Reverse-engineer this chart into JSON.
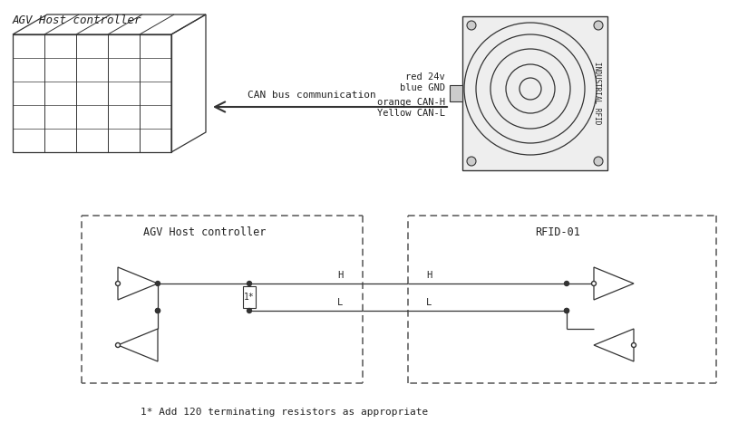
{
  "bg_color": "#ffffff",
  "line_color": "#333333",
  "text_color": "#222222",
  "title_top_left": "AGV Host controller",
  "label_agv": "AGV Host controller",
  "label_rfid": "RFID-01",
  "label_can_bus": "CAN bus communication",
  "label_red": "red 24v",
  "label_blue": "blue GND",
  "label_orange": "orange CAN-H",
  "label_yellow": "Yellow CAN-L",
  "label_H_left": "H",
  "label_L_left": "L",
  "label_H_right": "H",
  "label_L_right": "L",
  "label_resistor": "1*",
  "footnote": "1* Add 120 terminating resistors as appropriate",
  "industrial_rfid": "INDUSTRIAL RFID"
}
